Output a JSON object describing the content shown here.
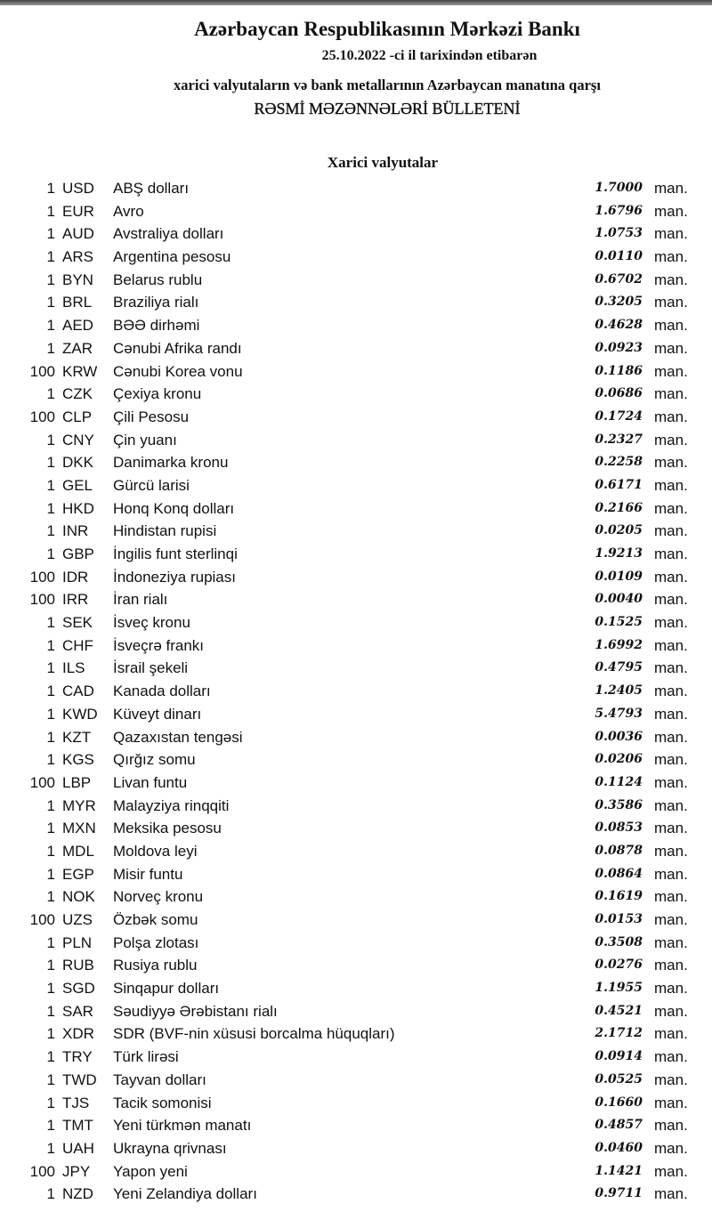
{
  "header": {
    "title": "Azərbaycan Respublikasının Mərkəzi Bankı",
    "date_line": "25.10.2022 -ci il tarixindən etibarən",
    "subtitle": "xarici valyutaların və bank metallarının Azərbaycan manatına qarşı",
    "bulletin": "RƏSMİ MƏZƏNNƏLƏRİ BÜLLETENİ"
  },
  "section_title": "Xarici valyutalar",
  "unit": "man.",
  "rates": [
    {
      "qty": "1",
      "code": "USD",
      "name": "ABŞ dolları",
      "value": "1.7000"
    },
    {
      "qty": "1",
      "code": "EUR",
      "name": "Avro",
      "value": "1.6796"
    },
    {
      "qty": "1",
      "code": "AUD",
      "name": "Avstraliya dolları",
      "value": "1.0753"
    },
    {
      "qty": "1",
      "code": "ARS",
      "name": "Argentina pesosu",
      "value": "0.0110"
    },
    {
      "qty": "1",
      "code": "BYN",
      "name": "Belarus rublu",
      "value": "0.6702"
    },
    {
      "qty": "1",
      "code": "BRL",
      "name": "Braziliya rialı",
      "value": "0.3205"
    },
    {
      "qty": "1",
      "code": "AED",
      "name": "BƏƏ dirhəmi",
      "value": "0.4628"
    },
    {
      "qty": "1",
      "code": "ZAR",
      "name": "Cənubi Afrika randı",
      "value": "0.0923"
    },
    {
      "qty": "100",
      "code": "KRW",
      "name": "Cənubi Korea vonu",
      "value": "0.1186"
    },
    {
      "qty": "1",
      "code": "CZK",
      "name": "Çexiya kronu",
      "value": "0.0686"
    },
    {
      "qty": "100",
      "code": "CLP",
      "name": "Çili Pesosu",
      "value": "0.1724"
    },
    {
      "qty": "1",
      "code": "CNY",
      "name": "Çin yuanı",
      "value": "0.2327"
    },
    {
      "qty": "1",
      "code": "DKK",
      "name": "Danimarka kronu",
      "value": "0.2258"
    },
    {
      "qty": "1",
      "code": "GEL",
      "name": "Gürcü larisi",
      "value": "0.6171"
    },
    {
      "qty": "1",
      "code": "HKD",
      "name": "Honq Konq dolları",
      "value": "0.2166"
    },
    {
      "qty": "1",
      "code": "INR",
      "name": "Hindistan rupisi",
      "value": "0.0205"
    },
    {
      "qty": "1",
      "code": "GBP",
      "name": "İngilis funt sterlinqi",
      "value": "1.9213"
    },
    {
      "qty": "100",
      "code": "IDR",
      "name": "İndoneziya rupiası",
      "value": "0.0109"
    },
    {
      "qty": "100",
      "code": "IRR",
      "name": "İran rialı",
      "value": "0.0040"
    },
    {
      "qty": "1",
      "code": "SEK",
      "name": "İsveç kronu",
      "value": "0.1525"
    },
    {
      "qty": "1",
      "code": "CHF",
      "name": "İsveçrə frankı",
      "value": "1.6992"
    },
    {
      "qty": "1",
      "code": "ILS",
      "name": "İsrail şekeli",
      "value": "0.4795"
    },
    {
      "qty": "1",
      "code": "CAD",
      "name": "Kanada dolları",
      "value": "1.2405"
    },
    {
      "qty": "1",
      "code": "KWD",
      "name": "Küveyt dinarı",
      "value": "5.4793"
    },
    {
      "qty": "1",
      "code": "KZT",
      "name": "Qazaxıstan tengəsi",
      "value": "0.0036"
    },
    {
      "qty": "1",
      "code": "KGS",
      "name": "Qırğız somu",
      "value": "0.0206"
    },
    {
      "qty": "100",
      "code": "LBP",
      "name": "Livan funtu",
      "value": "0.1124"
    },
    {
      "qty": "1",
      "code": "MYR",
      "name": "Malayziya rinqqiti",
      "value": "0.3586"
    },
    {
      "qty": "1",
      "code": "MXN",
      "name": "Meksika pesosu",
      "value": "0.0853"
    },
    {
      "qty": "1",
      "code": "MDL",
      "name": "Moldova leyi",
      "value": "0.0878"
    },
    {
      "qty": "1",
      "code": "EGP",
      "name": "Misir funtu",
      "value": "0.0864"
    },
    {
      "qty": "1",
      "code": "NOK",
      "name": "Norveç kronu",
      "value": "0.1619"
    },
    {
      "qty": "100",
      "code": "UZS",
      "name": "Özbək somu",
      "value": "0.0153"
    },
    {
      "qty": "1",
      "code": "PLN",
      "name": "Polşa zlotası",
      "value": "0.3508"
    },
    {
      "qty": "1",
      "code": "RUB",
      "name": "Rusiya rublu",
      "value": "0.0276"
    },
    {
      "qty": "1",
      "code": "SGD",
      "name": "Sinqapur dolları",
      "value": "1.1955"
    },
    {
      "qty": "1",
      "code": "SAR",
      "name": "Səudiyyə Ərəbistanı rialı",
      "value": "0.4521"
    },
    {
      "qty": "1",
      "code": "XDR",
      "name": "SDR (BVF-nin xüsusi borcalma hüquqları)",
      "value": "2.1712"
    },
    {
      "qty": "1",
      "code": "TRY",
      "name": "Türk lirəsi",
      "value": "0.0914"
    },
    {
      "qty": "1",
      "code": "TWD",
      "name": "Tayvan dolları",
      "value": "0.0525"
    },
    {
      "qty": "1",
      "code": "TJS",
      "name": "Tacik somonisi",
      "value": "0.1660"
    },
    {
      "qty": "1",
      "code": "TMT",
      "name": "Yeni türkmən manatı",
      "value": "0.4857"
    },
    {
      "qty": "1",
      "code": "UAH",
      "name": "Ukrayna qrivnası",
      "value": "0.0460"
    },
    {
      "qty": "100",
      "code": "JPY",
      "name": "Yapon yeni",
      "value": "1.1421"
    },
    {
      "qty": "1",
      "code": "NZD",
      "name": "Yeni Zelandiya dolları",
      "value": "0.9711"
    }
  ]
}
